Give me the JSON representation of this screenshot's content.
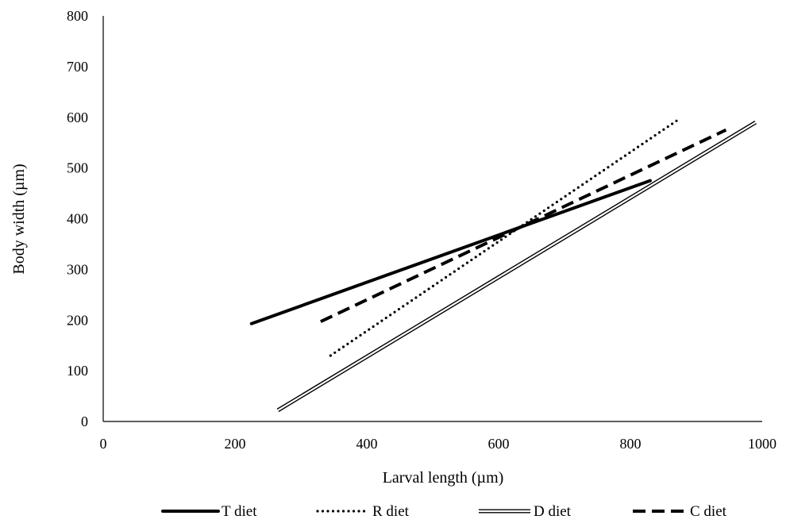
{
  "chart_data": {
    "type": "line",
    "title": "",
    "xlabel": "Larval length (µm)",
    "ylabel": "Body width (µm)",
    "xlim": [
      0,
      1000
    ],
    "ylim": [
      0,
      800
    ],
    "xticks": [
      "0",
      "200",
      "400",
      "600",
      "800",
      "1000"
    ],
    "yticks": [
      "0",
      "100",
      "200",
      "300",
      "400",
      "500",
      "600",
      "700",
      "800"
    ],
    "grid": false,
    "legend_position": "bottom",
    "series": [
      {
        "name": "T diet",
        "style": "solid-thick",
        "color": "#000000",
        "x": [
          225,
          830
        ],
        "y": [
          193,
          475
        ]
      },
      {
        "name": "R diet",
        "style": "dotted",
        "color": "#000000",
        "x": [
          345,
          870
        ],
        "y": [
          130,
          593
        ]
      },
      {
        "name": "D diet",
        "style": "double",
        "color": "#000000",
        "x": [
          265,
          990
        ],
        "y": [
          22,
          590
        ]
      },
      {
        "name": "C diet",
        "style": "dashed",
        "color": "#000000",
        "x": [
          330,
          945
        ],
        "y": [
          197,
          575
        ]
      }
    ]
  }
}
